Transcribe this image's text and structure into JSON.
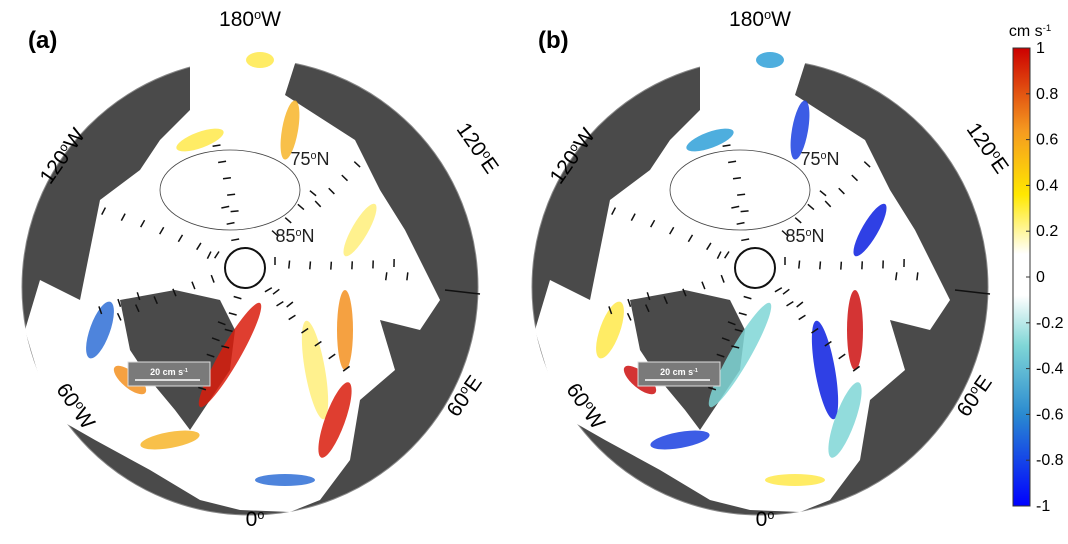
{
  "panels": [
    {
      "label": "(a)",
      "lon_labels": [
        {
          "deg": "180",
          "sup": "o",
          "dir": "W"
        },
        {
          "deg": "120",
          "sup": "o",
          "dir": "W"
        },
        {
          "deg": "120",
          "sup": "o",
          "dir": "E"
        },
        {
          "deg": "60",
          "sup": "o",
          "dir": "W"
        },
        {
          "deg": "60",
          "sup": "o",
          "dir": "E"
        },
        {
          "deg": "0",
          "sup": "o",
          "dir": ""
        }
      ],
      "lat_labels": [
        {
          "deg": "75",
          "sup": "o",
          "dir": "N"
        },
        {
          "deg": "85",
          "sup": "o",
          "dir": "N"
        }
      ],
      "scale_label": {
        "text": "20 cm s",
        "sup": "-1"
      }
    },
    {
      "label": "(b)",
      "lon_labels": [
        {
          "deg": "180",
          "sup": "o",
          "dir": "W"
        },
        {
          "deg": "120",
          "sup": "o",
          "dir": "W"
        },
        {
          "deg": "120",
          "sup": "o",
          "dir": "E"
        },
        {
          "deg": "60",
          "sup": "o",
          "dir": "W"
        },
        {
          "deg": "60",
          "sup": "o",
          "dir": "E"
        },
        {
          "deg": "0",
          "sup": "o",
          "dir": ""
        }
      ],
      "lat_labels": [
        {
          "deg": "75",
          "sup": "o",
          "dir": "N"
        },
        {
          "deg": "85",
          "sup": "o",
          "dir": "N"
        }
      ],
      "scale_label": {
        "text": "20 cm s",
        "sup": "-1"
      }
    }
  ],
  "colorbar": {
    "unit": {
      "text": "cm s",
      "sup": "-1"
    },
    "ticks": [
      1,
      0.8,
      0.6,
      0.4,
      0.2,
      0,
      -0.2,
      -0.4,
      -0.6,
      -0.8,
      -1
    ]
  }
}
